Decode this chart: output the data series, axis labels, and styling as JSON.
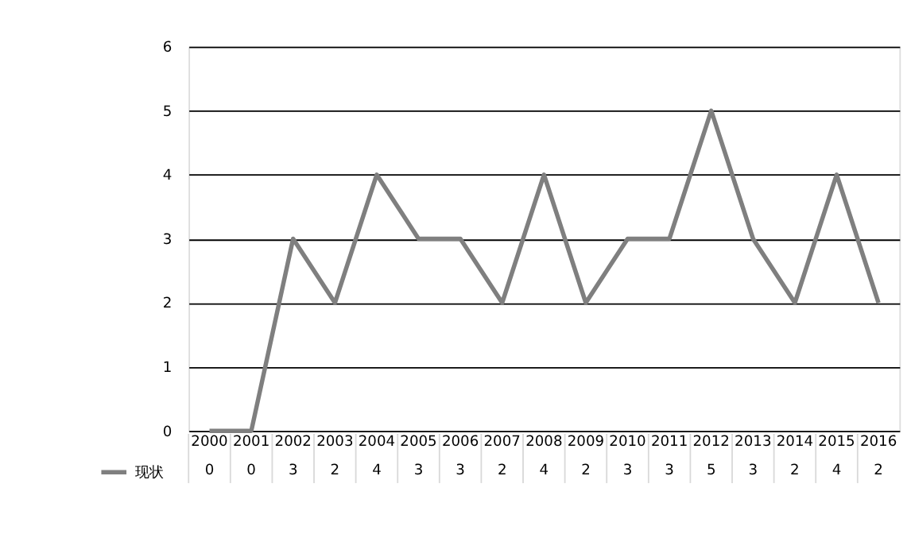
{
  "chart_data": {
    "type": "line",
    "categories": [
      "2000",
      "2001",
      "2002",
      "2003",
      "2004",
      "2005",
      "2006",
      "2007",
      "2008",
      "2009",
      "2010",
      "2011",
      "2012",
      "2013",
      "2014",
      "2015",
      "2016"
    ],
    "series": [
      {
        "name": "现状",
        "color": "#7f7f7f",
        "values": [
          0,
          0,
          3,
          2,
          4,
          3,
          3,
          2,
          4,
          2,
          3,
          3,
          5,
          3,
          2,
          4,
          2
        ]
      }
    ],
    "ylim": [
      0,
      6
    ],
    "yticks": [
      0,
      1,
      2,
      3,
      4,
      5,
      6
    ],
    "grid": "y",
    "legend": "bottom left",
    "data_labels": true,
    "marker": "none"
  }
}
